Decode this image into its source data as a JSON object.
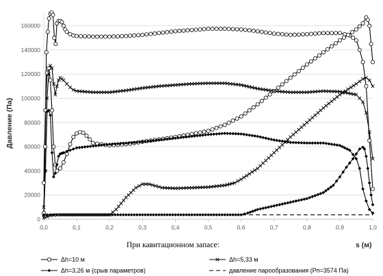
{
  "chart_data": {
    "type": "line",
    "title": "",
    "xlabel": "При кавитационном запасе:",
    "xunit": "s (м)",
    "ylabel": "Давление (Па)",
    "xlim": [
      0,
      1
    ],
    "ylim": [
      0,
      170000
    ],
    "xticks": [
      "0,0",
      "0,1",
      "0,2",
      "0,3",
      "0,4",
      "0,5",
      "0,6",
      "0,7",
      "0,8",
      "0,9",
      "1,0"
    ],
    "yticks": [
      "0",
      "20000",
      "40000",
      "60000",
      "80000",
      "100000",
      "120000",
      "140000",
      "160000"
    ],
    "grid": "horizontal",
    "legend_position": "bottom",
    "series": [
      {
        "name": "Δh=10 м",
        "marker": "circle",
        "color": "#000000",
        "branches": [
          {
            "x": [
              0.0,
              0.004,
              0.008,
              0.012,
              0.016,
              0.02,
              0.024,
              0.028,
              0.032,
              0.036,
              0.04,
              0.045,
              0.05,
              0.055,
              0.06,
              0.065,
              0.07,
              0.08,
              0.09,
              0.1,
              0.15,
              0.2,
              0.25,
              0.3,
              0.35,
              0.4,
              0.45,
              0.5,
              0.55,
              0.6,
              0.65,
              0.7,
              0.75,
              0.8,
              0.85,
              0.9,
              0.93,
              0.95,
              0.96,
              0.97,
              0.98,
              0.99,
              1.0
            ],
            "y": [
              5000,
              60000,
              138000,
              155000,
              166000,
              170000,
              171000,
              169000,
              150000,
              145000,
              162000,
              164000,
              164000,
              163000,
              160000,
              157000,
              155000,
              153000,
              152000,
              151500,
              151000,
              151000,
              151500,
              152500,
              154000,
              155500,
              156500,
              157500,
              157500,
              157000,
              155500,
              153500,
              152500,
              153000,
              154000,
              154000,
              152000,
              148000,
              140000,
              130000,
              110000,
              65000,
              25000
            ]
          },
          {
            "x": [
              0.0,
              0.005,
              0.01,
              0.015,
              0.02,
              0.025,
              0.03,
              0.035,
              0.04,
              0.05,
              0.06,
              0.07,
              0.08,
              0.09,
              0.1,
              0.11,
              0.12,
              0.13,
              0.15,
              0.2,
              0.25,
              0.3,
              0.35,
              0.4,
              0.45,
              0.5,
              0.55,
              0.6,
              0.65,
              0.7,
              0.75,
              0.8,
              0.85,
              0.9,
              0.95,
              0.97,
              0.98,
              0.985,
              0.99,
              0.995,
              1.0
            ],
            "y": [
              30000,
              90000,
              121000,
              125000,
              115000,
              90000,
              60000,
              45000,
              40000,
              42000,
              47000,
              54000,
              62000,
              68000,
              71000,
              72000,
              71500,
              69000,
              63000,
              61000,
              62000,
              64000,
              66000,
              68000,
              70500,
              73000,
              78000,
              85000,
              95000,
              106000,
              117000,
              128000,
              138000,
              148000,
              157000,
              162000,
              167000,
              165000,
              160000,
              145000,
              130000
            ]
          }
        ]
      },
      {
        "name": "Δh=5,33 м",
        "marker": "x",
        "color": "#000000",
        "branches": [
          {
            "x": [
              0.0,
              0.005,
              0.01,
              0.015,
              0.02,
              0.025,
              0.03,
              0.035,
              0.04,
              0.045,
              0.05,
              0.055,
              0.06,
              0.07,
              0.08,
              0.09,
              0.1,
              0.15,
              0.2,
              0.25,
              0.3,
              0.35,
              0.4,
              0.45,
              0.5,
              0.55,
              0.6,
              0.65,
              0.7,
              0.75,
              0.8,
              0.85,
              0.9,
              0.95,
              0.97,
              0.98,
              0.99,
              1.0
            ],
            "y": [
              10000,
              40000,
              100000,
              120000,
              127000,
              125000,
              112000,
              103000,
              110000,
              115000,
              117000,
              116000,
              115000,
              112000,
              109000,
              107000,
              106000,
              105000,
              105000,
              106500,
              108500,
              110000,
              111000,
              112000,
              112500,
              112500,
              111000,
              108000,
              106000,
              105000,
              105000,
              106000,
              105500,
              103000,
              97000,
              88000,
              72000,
              50000
            ]
          },
          {
            "x": [
              0.0,
              0.01,
              0.02,
              0.03,
              0.04,
              0.05,
              0.1,
              0.15,
              0.2,
              0.22,
              0.25,
              0.28,
              0.3,
              0.32,
              0.34,
              0.36,
              0.4,
              0.45,
              0.5,
              0.55,
              0.58,
              0.6,
              0.65,
              0.7,
              0.75,
              0.8,
              0.85,
              0.9,
              0.95,
              0.97,
              0.98,
              0.99,
              1.0
            ],
            "y": [
              1000,
              2000,
              3000,
              3300,
              3600,
              3600,
              3600,
              3600,
              3600,
              8000,
              18000,
              26000,
              29000,
              29000,
              27500,
              26000,
              25500,
              26000,
              26500,
              28000,
              30000,
              33000,
              42000,
              55000,
              68000,
              80000,
              92000,
              103000,
              112000,
              116000,
              117000,
              115000,
              110000
            ]
          }
        ]
      },
      {
        "name": "Δh=3,26 м (срыв параметров)",
        "marker": "diamond",
        "color": "#000000",
        "branches": [
          {
            "x": [
              0.0,
              0.005,
              0.01,
              0.015,
              0.02,
              0.025,
              0.03,
              0.035,
              0.04,
              0.045,
              0.05,
              0.055,
              0.06,
              0.07,
              0.08,
              0.1,
              0.15,
              0.2,
              0.25,
              0.3,
              0.35,
              0.4,
              0.45,
              0.5,
              0.55,
              0.6,
              0.65,
              0.7,
              0.75,
              0.8,
              0.85,
              0.9,
              0.93,
              0.95,
              0.96,
              0.97,
              0.98,
              0.99,
              1.0
            ],
            "y": [
              3000,
              40000,
              89000,
              90000,
              86000,
              55000,
              35000,
              38000,
              45000,
              52000,
              54000,
              54500,
              55000,
              56000,
              57000,
              59000,
              60500,
              62000,
              63000,
              64000,
              65500,
              67000,
              68500,
              70000,
              71000,
              70500,
              68500,
              65500,
              63500,
              63000,
              63000,
              61000,
              57000,
              50000,
              42000,
              25000,
              15000,
              8000,
              5000
            ]
          },
          {
            "x": [
              0.0,
              0.01,
              0.02,
              0.03,
              0.05,
              0.1,
              0.2,
              0.3,
              0.4,
              0.5,
              0.55,
              0.6,
              0.62,
              0.65,
              0.7,
              0.75,
              0.8,
              0.85,
              0.88,
              0.9,
              0.92,
              0.94,
              0.96,
              0.97,
              0.975,
              0.98,
              0.985,
              0.99,
              0.995,
              1.0
            ],
            "y": [
              3600,
              3600,
              3600,
              3600,
              3600,
              3600,
              3600,
              3600,
              3600,
              3600,
              3600,
              3600,
              5000,
              8000,
              11000,
              14000,
              17000,
              22000,
              28000,
              35000,
              43000,
              50000,
              58000,
              59500,
              58000,
              52000,
              42000,
              30000,
              20000,
              12000
            ]
          }
        ]
      },
      {
        "name": "давление парообразования (Рп=3574 Па)",
        "marker": "none",
        "dash": "6,4",
        "color": "#000000",
        "branches": [
          {
            "x": [
              0.0,
              1.0
            ],
            "y": [
              3574,
              3574
            ]
          }
        ]
      }
    ]
  }
}
